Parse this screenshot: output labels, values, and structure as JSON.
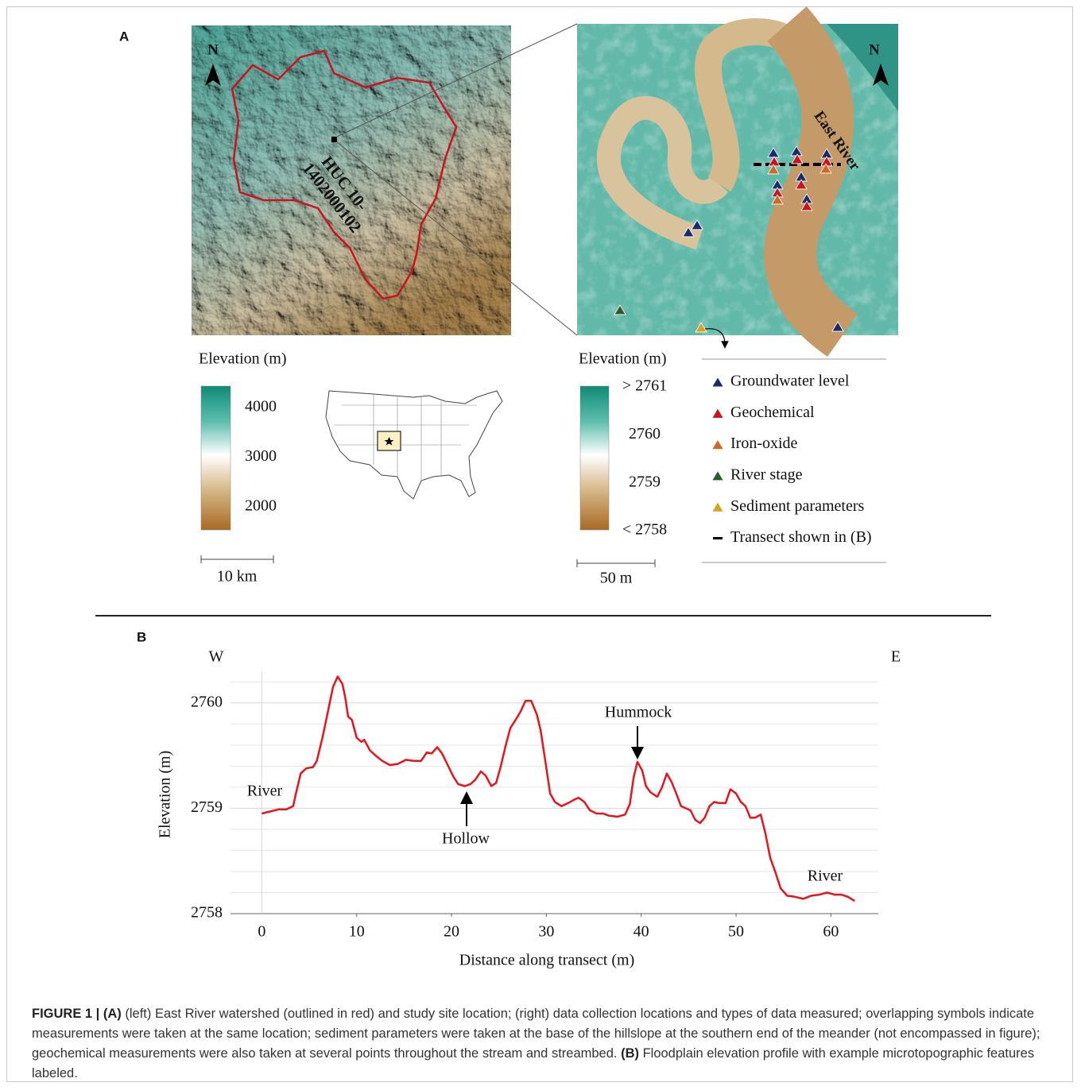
{
  "panel_labels": [
    "A",
    "B"
  ],
  "left_map": {
    "north": "N",
    "huc": [
      "HUC 10-",
      "1402000102"
    ],
    "colorbar_title": "Elevation (m)",
    "colorbar_range": [
      1540,
      4410
    ],
    "colorbar_ticks": [
      4000,
      3000,
      2000
    ],
    "scale": "10 km"
  },
  "right_map": {
    "north": "N",
    "river": "East River",
    "colorbar_title": "Elevation (m)",
    "colorbar_range": [
      2758,
      2761
    ],
    "colorbar_ticks": [
      {
        "value": 2761,
        "label": "> 2761"
      },
      2760,
      2759,
      {
        "value": 2758,
        "label": "< 2758"
      }
    ],
    "scale": "50 m"
  },
  "legend": [
    {
      "name": "Groundwater level",
      "color": "#1b2a6b"
    },
    {
      "name": "Geochemical",
      "color": "#c8141e"
    },
    {
      "name": "Iron-oxide",
      "color": "#cf6a26"
    },
    {
      "name": "River stage",
      "color": "#2f5a2c"
    },
    {
      "name": "Sediment parameters",
      "color": "#d6a422"
    },
    {
      "name": "Transect shown in (B)",
      "color": "#000000"
    }
  ],
  "chart_data": {
    "type": "line",
    "x_left_label": "W",
    "x_right_label": "E",
    "xlabel": "Distance along transect (m)",
    "ylabel": "Elevation (m)",
    "xlim": [
      -3.3,
      65
    ],
    "ylim": [
      2758,
      2760.3
    ],
    "xticks": [
      0,
      10,
      20,
      30,
      40,
      50,
      60
    ],
    "yticks": [
      2758,
      2759,
      2760
    ],
    "ygrid": [
      2758.2,
      2758.4,
      2758.6,
      2758.8,
      2759.2,
      2759.4,
      2759.6,
      2759.8,
      2760.2
    ],
    "color": "#e8141c",
    "annotations": [
      "River",
      "Hollow",
      "Hummock",
      "River"
    ],
    "x": [
      0,
      0.9,
      1.8,
      2.6,
      3.3,
      3.6,
      4.1,
      4.7,
      5.4,
      5.8,
      6.4,
      7.0,
      7.5,
      8.0,
      8.5,
      8.8,
      9.1,
      9.5,
      10.0,
      10.5,
      10.8,
      11.4,
      12.0,
      12.7,
      13.5,
      14.3,
      15.2,
      16.0,
      16.8,
      17.4,
      17.9,
      18.5,
      19.0,
      19.6,
      20.2,
      20.7,
      21.4,
      22.0,
      22.5,
      23.1,
      23.6,
      24.2,
      24.7,
      25.2,
      25.7,
      26.2,
      26.9,
      27.3,
      27.8,
      28.4,
      29.0,
      29.4,
      29.9,
      30.4,
      30.9,
      31.6,
      32.3,
      32.9,
      33.4,
      34.0,
      34.6,
      35.3,
      36.0,
      36.6,
      37.5,
      38.3,
      38.8,
      39.2,
      39.6,
      40.1,
      40.5,
      41.0,
      41.7,
      42.2,
      42.7,
      43.2,
      43.7,
      44.2,
      44.7,
      45.2,
      45.7,
      46.2,
      46.7,
      47.2,
      47.7,
      48.2,
      48.9,
      49.4,
      50.0,
      50.5,
      51.0,
      51.5,
      52.0,
      52.6,
      53.1,
      53.6,
      54.2,
      54.7,
      55.4,
      56.2,
      57.1,
      57.9,
      58.8,
      59.6,
      60.4,
      61.1,
      61.8,
      62.5
    ],
    "y": [
      2758.95,
      2758.97,
      2758.99,
      2758.99,
      2759.02,
      2759.14,
      2759.33,
      2759.38,
      2759.39,
      2759.45,
      2759.67,
      2759.93,
      2760.15,
      2760.25,
      2760.18,
      2760.05,
      2759.87,
      2759.84,
      2759.67,
      2759.63,
      2759.65,
      2759.55,
      2759.5,
      2759.45,
      2759.41,
      2759.42,
      2759.46,
      2759.45,
      2759.45,
      2759.53,
      2759.52,
      2759.58,
      2759.52,
      2759.41,
      2759.3,
      2759.23,
      2759.21,
      2759.23,
      2759.27,
      2759.35,
      2759.31,
      2759.21,
      2759.24,
      2759.4,
      2759.59,
      2759.76,
      2759.86,
      2759.92,
      2760.02,
      2760.02,
      2759.89,
      2759.74,
      2759.44,
      2759.14,
      2759.06,
      2759.02,
      2759.05,
      2759.08,
      2759.1,
      2759.06,
      2758.98,
      2758.95,
      2758.95,
      2758.93,
      2758.92,
      2758.94,
      2759.04,
      2759.29,
      2759.44,
      2759.36,
      2759.21,
      2759.15,
      2759.11,
      2759.2,
      2759.33,
      2759.25,
      2759.14,
      2759.02,
      2759.0,
      2758.98,
      2758.89,
      2758.86,
      2758.91,
      2759.02,
      2759.06,
      2759.05,
      2759.05,
      2759.18,
      2759.14,
      2759.06,
      2759.02,
      2758.91,
      2758.91,
      2758.94,
      2758.76,
      2758.53,
      2758.38,
      2758.24,
      2758.17,
      2758.16,
      2758.14,
      2758.17,
      2758.18,
      2758.2,
      2758.18,
      2758.18,
      2758.16,
      2758.12
    ]
  },
  "caption": {
    "label": "FIGURE 1 |",
    "a": "(A)",
    "text_a": "(left) East River watershed (outlined in red) and study site location; (right) data collection locations and types of data measured; overlapping symbols indicate measurements were taken at the same location; sediment parameters were taken at the base of the hillslope at the southern end of the meander (not encompassed in figure); geochemical measurements were also taken at several points throughout the stream and streambed.",
    "b": "(B)",
    "text_b": "Floodplain elevation profile with example microtopographic features labeled."
  }
}
